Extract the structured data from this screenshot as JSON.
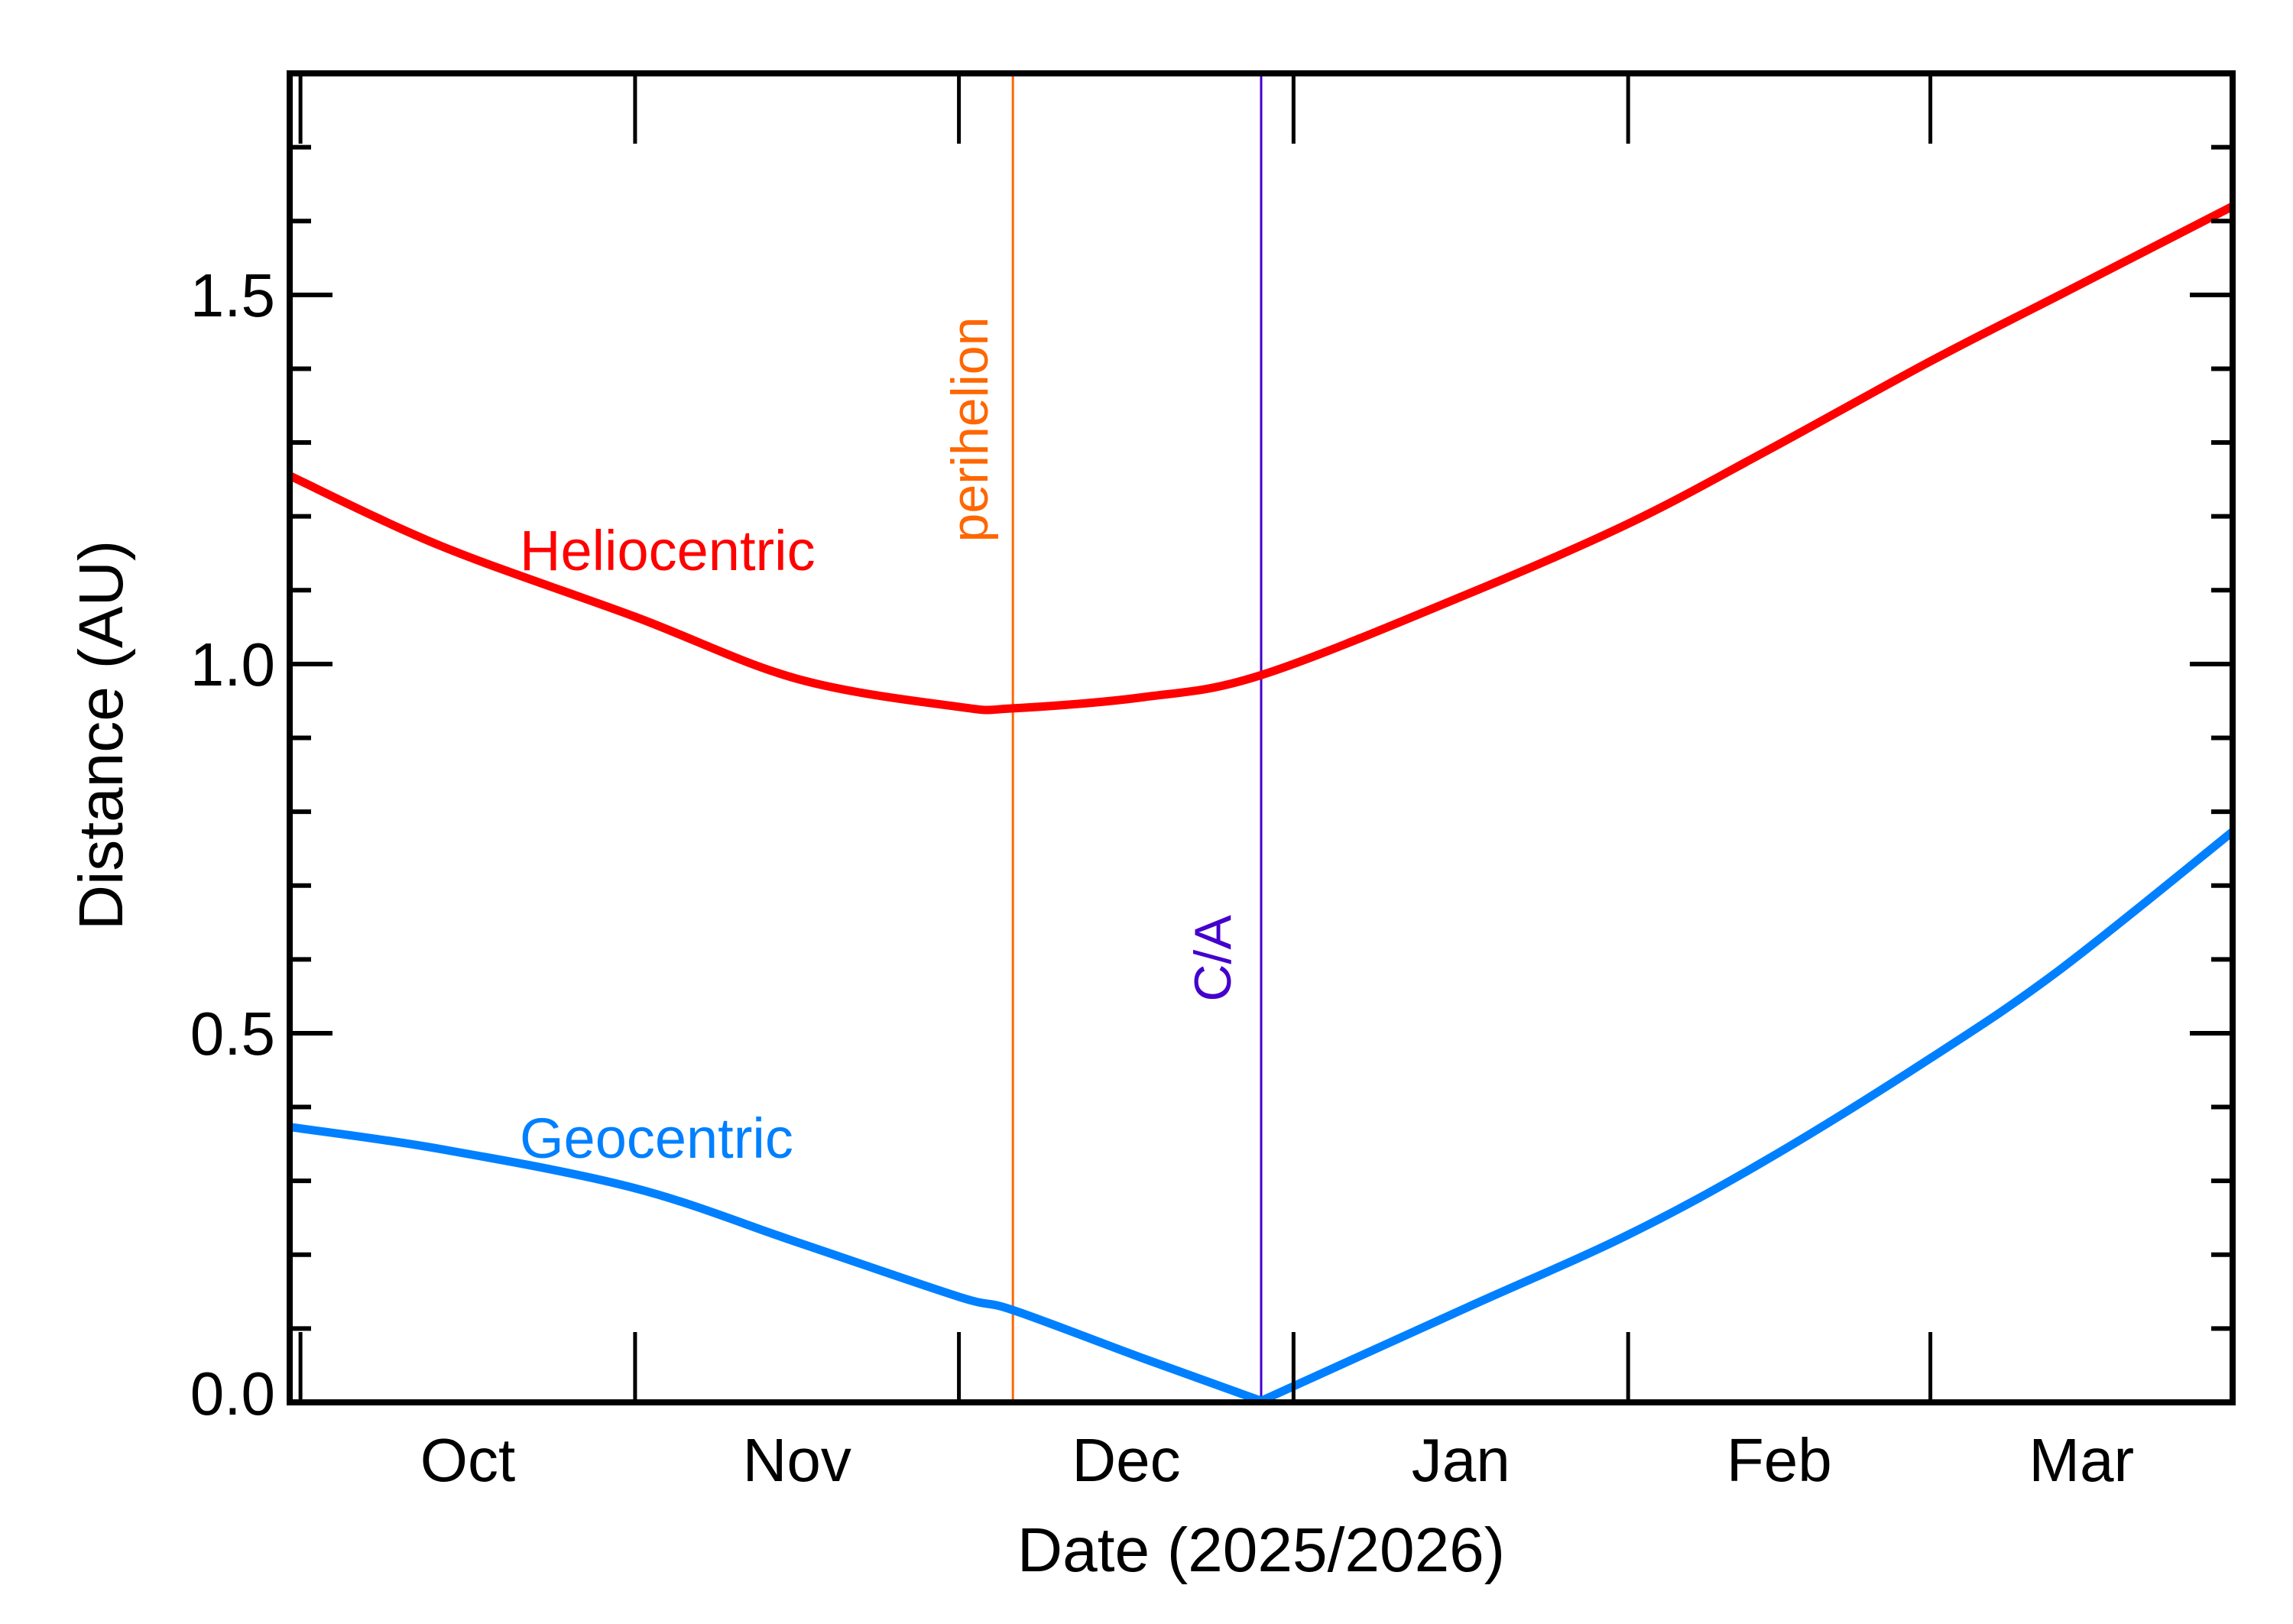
{
  "chart_data": {
    "type": "line",
    "title": "",
    "xlabel": "Date (2025/2026)",
    "ylabel": "Distance (AU)",
    "xlim": [
      "2025-09-30",
      "2026-03-29"
    ],
    "ylim": [
      0,
      1.8
    ],
    "x_tick_dates": [
      "2025-10-01",
      "2025-11-01",
      "2025-12-01",
      "2026-01-01",
      "2026-02-01",
      "2026-03-01"
    ],
    "x_tick_labels": [
      "Oct",
      "Nov",
      "Dec",
      "Jan",
      "Feb",
      "Mar"
    ],
    "y_ticks": [
      0.0,
      0.5,
      1.0,
      1.5
    ],
    "y_tick_labels": [
      "0.0",
      "0.5",
      "1.0",
      "1.5"
    ],
    "y_minor_step": 0.1,
    "grid": false,
    "series": [
      {
        "name": "Heliocentric",
        "color": "#ff0000",
        "x": [
          "2025-09-30",
          "2025-10-14",
          "2025-11-01",
          "2025-11-16",
          "2025-12-01",
          "2025-12-06",
          "2025-12-18",
          "2025-12-29",
          "2026-01-17",
          "2026-02-01",
          "2026-02-14",
          "2026-03-01",
          "2026-03-13",
          "2026-03-29"
        ],
        "values": [
          1.255,
          1.16,
          1.064,
          0.98,
          0.942,
          0.94,
          0.955,
          0.985,
          1.094,
          1.19,
          1.29,
          1.41,
          1.5,
          1.62
        ]
      },
      {
        "name": "Geocentric",
        "color": "#0080ff",
        "x": [
          "2025-09-30",
          "2025-10-14",
          "2025-11-01",
          "2025-11-16",
          "2025-12-01",
          "2025-12-06",
          "2025-12-18",
          "2025-12-29",
          "2026-01-17",
          "2026-02-01",
          "2026-02-14",
          "2026-03-01",
          "2026-03-13",
          "2026-03-29"
        ],
        "values": [
          0.373,
          0.343,
          0.29,
          0.217,
          0.143,
          0.125,
          0.06,
          0.002,
          0.128,
          0.227,
          0.33,
          0.466,
          0.586,
          0.773
        ]
      }
    ],
    "markers": [
      {
        "label": "perihelion",
        "date": "2025-12-06",
        "color": "#ff6600"
      },
      {
        "label": "C/A",
        "date": "2025-12-29",
        "color": "#4400cc"
      }
    ]
  }
}
